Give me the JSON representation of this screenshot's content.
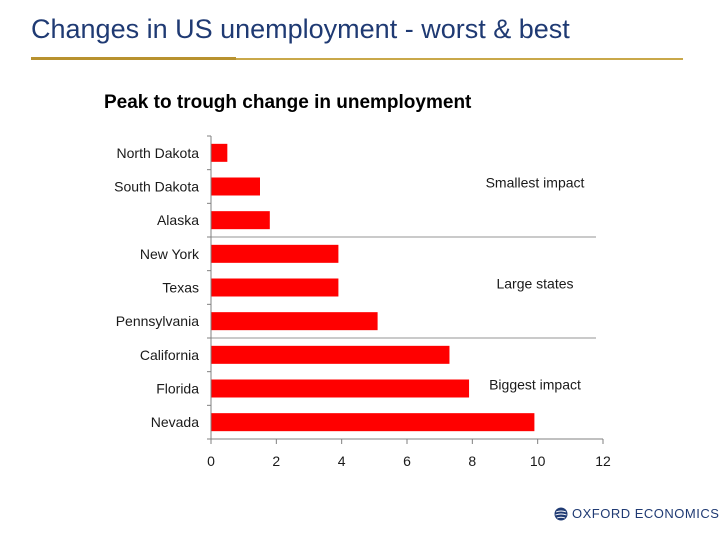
{
  "slide": {
    "title": "Changes in US unemployment - worst & best",
    "logo_text": "OXFORD ECONOMICS"
  },
  "colors": {
    "bar": "#ff0000",
    "title": "#1f3a73",
    "accent": "#c9a84a"
  },
  "chart_data": {
    "type": "bar",
    "orientation": "horizontal",
    "title": "Peak to trough change in unemployment",
    "categories": [
      "North Dakota",
      "South Dakota",
      "Alaska",
      "New York",
      "Texas",
      "Pennsylvania",
      "California",
      "Florida",
      "Nevada"
    ],
    "values": [
      0.5,
      1.5,
      1.8,
      3.9,
      3.9,
      5.1,
      7.3,
      7.9,
      9.9
    ],
    "xlim": [
      0,
      12
    ],
    "xticks": [
      "0",
      "2",
      "4",
      "6",
      "8",
      "10",
      "12"
    ],
    "xlabel": "",
    "ylabel": "",
    "groups": [
      {
        "label": "Smallest impact",
        "count": 3
      },
      {
        "label": "Large states",
        "count": 3
      },
      {
        "label": "Biggest impact",
        "count": 3
      }
    ]
  }
}
